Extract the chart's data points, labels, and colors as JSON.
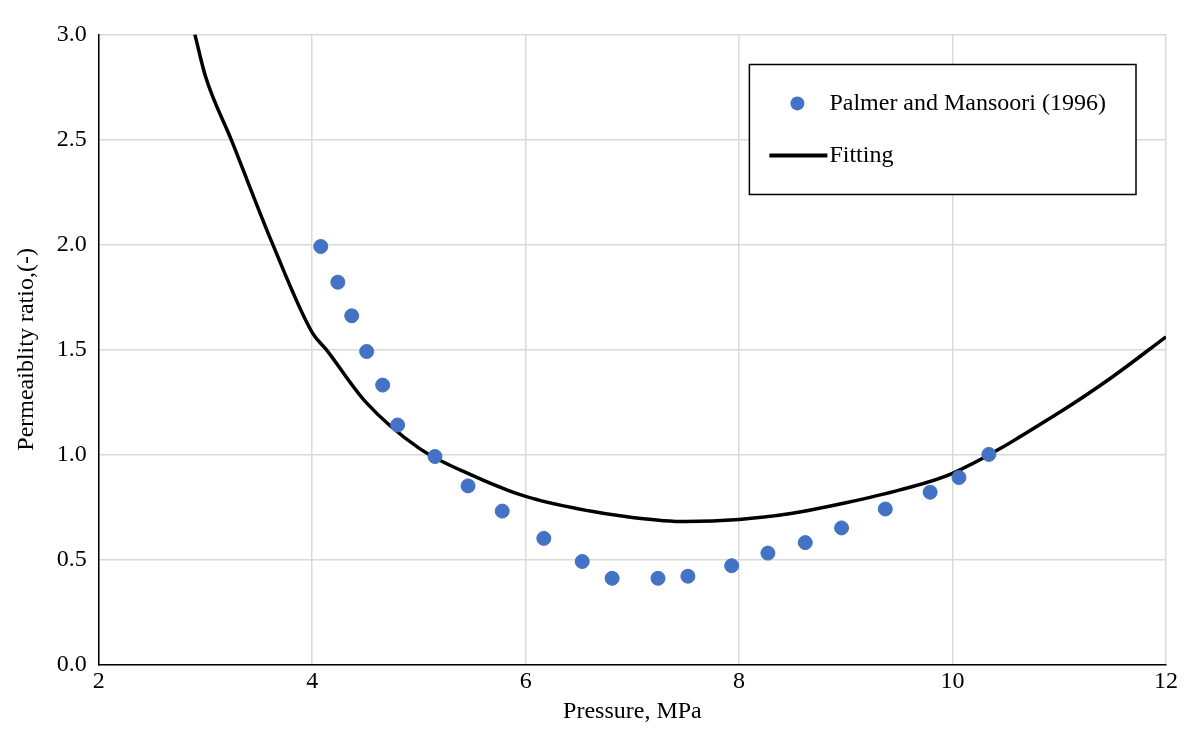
{
  "chart_data": {
    "type": "scatter",
    "xlabel": "Pressure, MPa",
    "ylabel": "Permeaiblity ratio,(-)",
    "xlim": [
      2,
      12
    ],
    "xticks": [
      2,
      4,
      6,
      8,
      10,
      12
    ],
    "ylim": [
      0,
      3
    ],
    "yticks": [
      {
        "value": 0,
        "label": "0.0"
      },
      {
        "value": 0.5,
        "label": "0.5"
      },
      {
        "value": 1,
        "label": "1.0"
      },
      {
        "value": 1.5,
        "label": "1.5"
      },
      {
        "value": 2,
        "label": "2.0"
      },
      {
        "value": 2.5,
        "label": "2.5"
      },
      {
        "value": 3,
        "label": "3.0"
      }
    ],
    "grid": true,
    "legend": "top right",
    "series": [
      {
        "name": "Palmer and Mansoori (1996)",
        "marker": "circle",
        "color": "#4472c4",
        "x": [
          4.08,
          4.24,
          4.37,
          4.51,
          4.66,
          4.8,
          5.15,
          5.46,
          5.78,
          6.17,
          6.53,
          6.81,
          7.24,
          7.52,
          7.93,
          8.27,
          8.62,
          8.96,
          9.37,
          9.79,
          10.06,
          10.34
        ],
        "values": [
          1.99,
          1.82,
          1.66,
          1.49,
          1.33,
          1.14,
          0.99,
          0.85,
          0.73,
          0.6,
          0.49,
          0.41,
          0.41,
          0.42,
          0.47,
          0.53,
          0.58,
          0.65,
          0.74,
          0.82,
          0.89,
          1.0
        ]
      },
      {
        "name": "Fitting",
        "type": "line",
        "marker": "none",
        "line_style": "solid",
        "color": "#000000",
        "x": [
          2.9,
          3.0,
          3.24,
          3.63,
          4.0,
          4.13,
          4.5,
          5.0,
          5.5,
          6.0,
          6.5,
          7.0,
          7.5,
          8.0,
          8.5,
          9.0,
          9.5,
          10.0,
          11.0,
          11.5,
          12.0
        ],
        "values": [
          3.0,
          2.8,
          2.5,
          2.0,
          1.58,
          1.5,
          1.25,
          1.03,
          0.9,
          0.8,
          0.74,
          0.7,
          0.68,
          0.69,
          0.72,
          0.77,
          0.83,
          0.91,
          1.2,
          1.37,
          1.56
        ]
      }
    ]
  }
}
